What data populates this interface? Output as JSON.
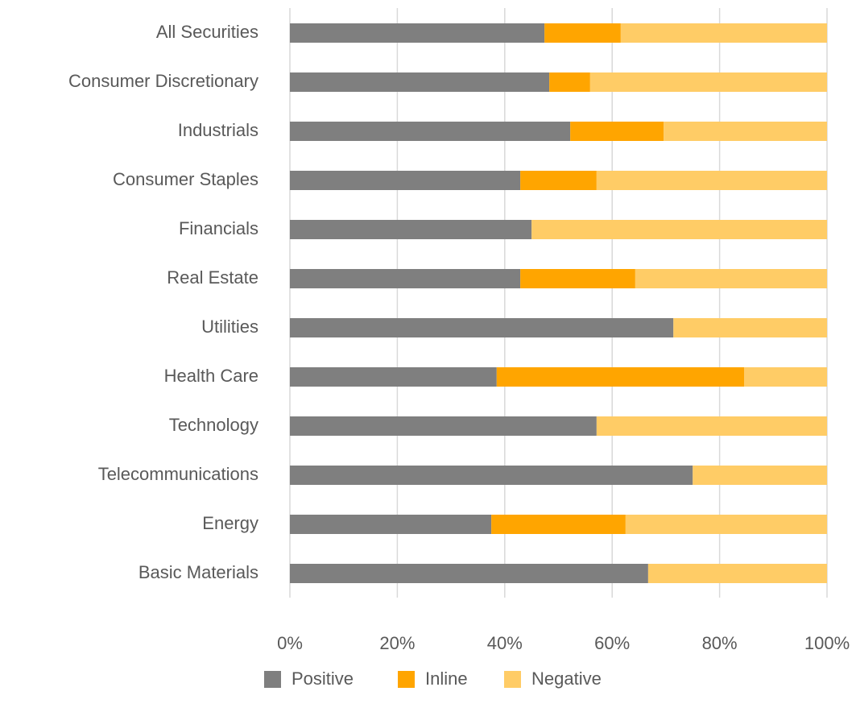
{
  "chart_data": {
    "type": "stacked_barh",
    "categories": [
      "All Securities",
      "Consumer Discretionary",
      "Industrials",
      "Consumer Staples",
      "Financials",
      "Real Estate",
      "Utilities",
      "Health Care",
      "Technology",
      "Telecommunications",
      "Energy",
      "Basic Materials"
    ],
    "series": [
      {
        "name": "Positive",
        "color": "#7f7f7f",
        "values": [
          47.4,
          48.3,
          52.2,
          42.9,
          45.0,
          42.9,
          71.4,
          38.5,
          57.1,
          75.0,
          37.5,
          66.7
        ]
      },
      {
        "name": "Inline",
        "color": "#ffa500",
        "values": [
          14.2,
          7.6,
          17.4,
          14.2,
          0,
          21.4,
          0,
          46.1,
          0,
          0,
          25.0,
          0
        ]
      },
      {
        "name": "Negative",
        "color": "#ffcc66",
        "values": [
          38.4,
          44.1,
          30.4,
          42.9,
          55.0,
          35.7,
          28.6,
          15.4,
          42.9,
          25.0,
          37.5,
          33.3
        ]
      }
    ],
    "xlim": [
      0,
      100
    ],
    "xticks": [
      {
        "value": 0,
        "label": "0%"
      },
      {
        "value": 20,
        "label": "20%"
      },
      {
        "value": 40,
        "label": "40%"
      },
      {
        "value": 60,
        "label": "60%"
      },
      {
        "value": 80,
        "label": "80%"
      },
      {
        "value": 100,
        "label": "100%"
      }
    ],
    "grid": true,
    "legend": "bottom"
  }
}
